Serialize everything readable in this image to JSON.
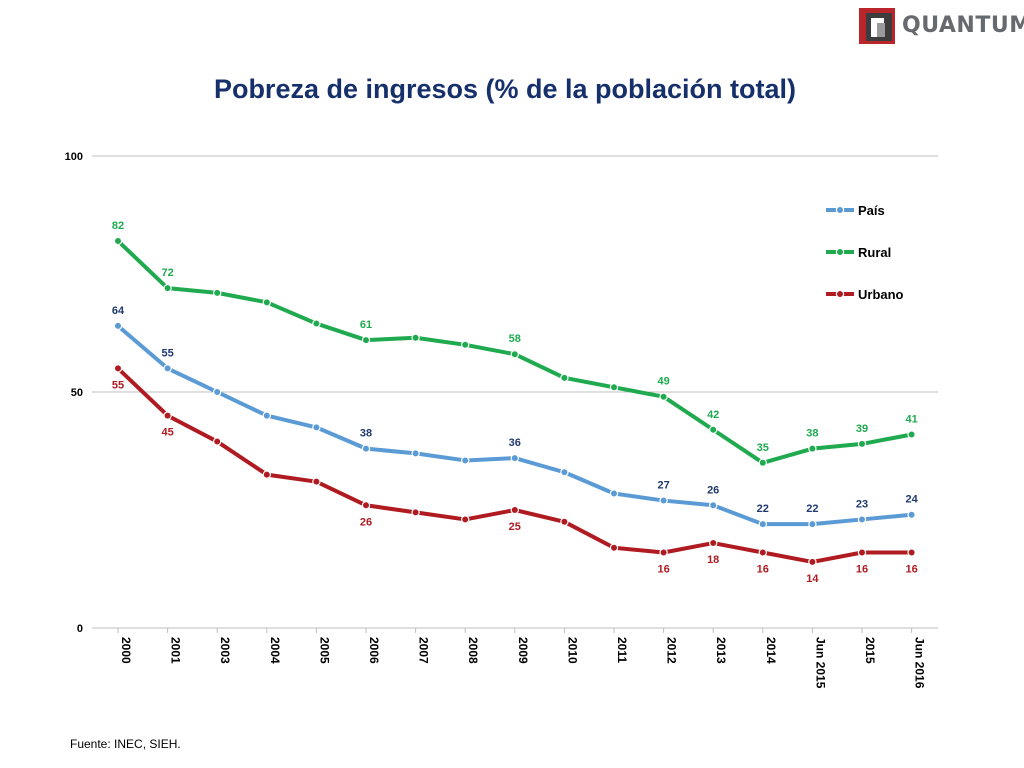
{
  "brand": {
    "name": "QUANTUM",
    "colors": {
      "red": "#b8262b",
      "dark": "#3d3d3d",
      "gray": "#666a6e"
    }
  },
  "source": "Fuente: INEC, SIEH.",
  "chart_data": {
    "type": "line",
    "title": "Pobreza de ingresos (% de la población total)",
    "xlabel": "",
    "ylabel": "",
    "ylim": [
      0,
      100
    ],
    "yticks": [
      0,
      50,
      100
    ],
    "grid": true,
    "legend_position": "right",
    "categories": [
      "2000",
      "2001",
      "2003",
      "2004",
      "2005",
      "2006",
      "2007",
      "2008",
      "2009",
      "2010",
      "2011",
      "2012",
      "2013",
      "2014",
      "Jun 2015",
      "2015",
      "Jun 2016"
    ],
    "series": [
      {
        "name": "País",
        "color": "#5b9bd5",
        "label_color": "#1f3a6e",
        "label_position": "above",
        "values": [
          64,
          55,
          50,
          45,
          42.5,
          38,
          37,
          35.5,
          36,
          33,
          28.5,
          27,
          26,
          22,
          22,
          23,
          24
        ],
        "labels": [
          "64",
          "55",
          "",
          "",
          "",
          "38",
          "",
          "",
          "36",
          "",
          "",
          "27",
          "26",
          "22",
          "22",
          "23",
          "24"
        ]
      },
      {
        "name": "Rural",
        "color": "#1faa4f",
        "label_color": "#1faa4f",
        "label_position": "above",
        "values": [
          82,
          72,
          71,
          69,
          64.5,
          61,
          61.5,
          60,
          58,
          53,
          51,
          49,
          42,
          35,
          38,
          39,
          41
        ],
        "labels": [
          "82",
          "72",
          "",
          "",
          "",
          "61",
          "",
          "",
          "58",
          "",
          "",
          "49",
          "42",
          "35",
          "38",
          "39",
          "41"
        ]
      },
      {
        "name": "Urbano",
        "color": "#b01b22",
        "label_color": "#b01b22",
        "label_position": "below",
        "values": [
          55,
          45,
          39.5,
          32.5,
          31,
          26,
          24.5,
          23,
          25,
          22.5,
          17,
          16,
          18,
          16,
          14,
          16,
          16
        ],
        "labels": [
          "55",
          "45",
          "",
          "",
          "",
          "26",
          "",
          "",
          "25",
          "",
          "",
          "16",
          "18",
          "16",
          "14",
          "16",
          "16"
        ]
      }
    ]
  }
}
